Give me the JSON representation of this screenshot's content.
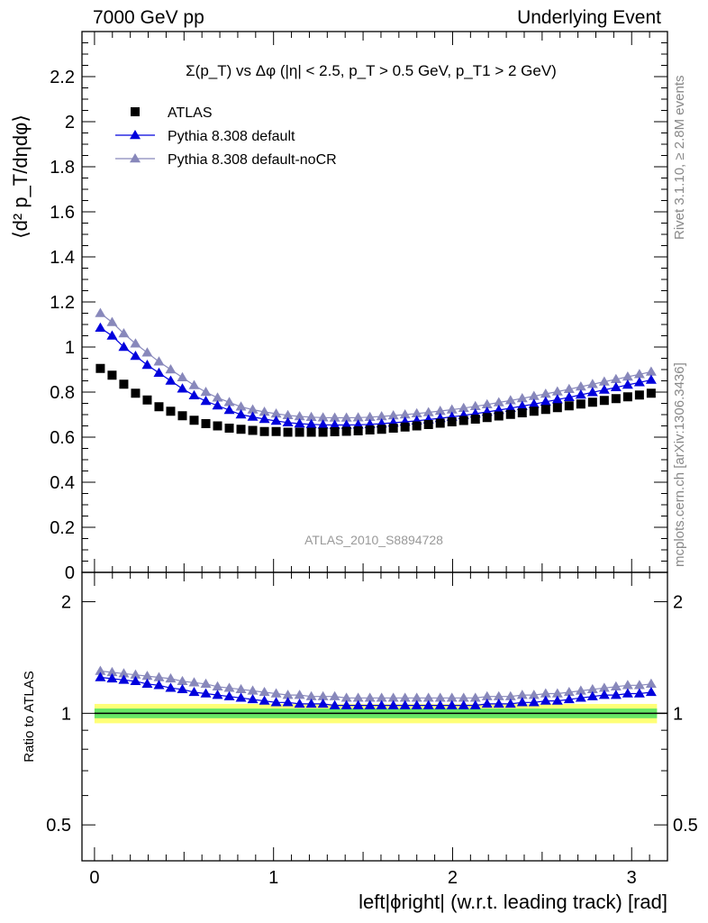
{
  "header": {
    "left": "7000 GeV pp",
    "right": "Underlying Event"
  },
  "side": {
    "rivet": "Rivet 3.1.10, ≥ 2.8M events",
    "mcplots": "mcplots.cern.ch [arXiv:1306.3436]"
  },
  "chart_data": [
    {
      "type": "scatter",
      "title": "Σ(p_T) vs Δφ (|η| < 2.5, p_T > 0.5 GeV, p_T1 > 2 GeV)",
      "ylabel": "⟨d² p_T/dηdφ⟩",
      "watermark": "ATLAS_2010_S8894728",
      "xlim": [
        -0.07,
        3.2
      ],
      "ylim": [
        0,
        2.4
      ],
      "yticks": [
        0,
        0.2,
        0.4,
        0.6,
        0.8,
        1,
        1.2,
        1.4,
        1.6,
        1.8,
        2,
        2.2
      ],
      "ytick_labels": [
        "0",
        "0.2",
        "0.4",
        "0.6",
        "0.8",
        "1",
        "1.2",
        "1.4",
        "1.6",
        "1.8",
        "2",
        "2.2"
      ],
      "legend_position": "top-left",
      "x": [
        0.0327,
        0.0982,
        0.1636,
        0.2291,
        0.2945,
        0.36,
        0.4254,
        0.4909,
        0.5563,
        0.6218,
        0.6872,
        0.7527,
        0.8181,
        0.8836,
        0.949,
        1.0145,
        1.0799,
        1.1454,
        1.2108,
        1.2763,
        1.3417,
        1.4072,
        1.4726,
        1.5381,
        1.6035,
        1.669,
        1.7344,
        1.7999,
        1.8653,
        1.9308,
        1.9962,
        2.0617,
        2.1271,
        2.1926,
        2.258,
        2.3235,
        2.3889,
        2.4544,
        2.5198,
        2.5853,
        2.6507,
        2.7162,
        2.7816,
        2.8471,
        2.9125,
        2.978,
        3.0434,
        3.1089
      ],
      "series": [
        {
          "name": "ATLAS",
          "color": "#000000",
          "marker": "square",
          "values": [
            0.905,
            0.875,
            0.835,
            0.795,
            0.765,
            0.735,
            0.715,
            0.695,
            0.675,
            0.66,
            0.65,
            0.64,
            0.635,
            0.63,
            0.625,
            0.625,
            0.622,
            0.622,
            0.622,
            0.622,
            0.624,
            0.626,
            0.628,
            0.632,
            0.635,
            0.64,
            0.645,
            0.65,
            0.656,
            0.662,
            0.668,
            0.674,
            0.68,
            0.687,
            0.694,
            0.701,
            0.708,
            0.715,
            0.723,
            0.731,
            0.739,
            0.747,
            0.755,
            0.763,
            0.771,
            0.779,
            0.787,
            0.795
          ]
        },
        {
          "name": "Pythia 8.308 default",
          "color": "#0000dd",
          "marker": "triangle",
          "values": [
            1.085,
            1.05,
            1.0,
            0.96,
            0.92,
            0.885,
            0.85,
            0.815,
            0.785,
            0.76,
            0.74,
            0.72,
            0.7,
            0.69,
            0.68,
            0.672,
            0.665,
            0.66,
            0.657,
            0.655,
            0.654,
            0.654,
            0.655,
            0.657,
            0.66,
            0.664,
            0.668,
            0.673,
            0.678,
            0.684,
            0.69,
            0.697,
            0.704,
            0.712,
            0.72,
            0.729,
            0.738,
            0.747,
            0.757,
            0.767,
            0.777,
            0.788,
            0.799,
            0.81,
            0.821,
            0.832,
            0.843,
            0.854
          ]
        },
        {
          "name": "Pythia 8.308 default-noCR",
          "color": "#8888bb",
          "marker": "triangle",
          "values": [
            1.15,
            1.11,
            1.06,
            1.015,
            0.975,
            0.935,
            0.9,
            0.865,
            0.83,
            0.8,
            0.775,
            0.755,
            0.735,
            0.722,
            0.712,
            0.704,
            0.697,
            0.692,
            0.689,
            0.687,
            0.686,
            0.686,
            0.687,
            0.689,
            0.692,
            0.696,
            0.7,
            0.705,
            0.71,
            0.716,
            0.722,
            0.729,
            0.737,
            0.745,
            0.754,
            0.763,
            0.772,
            0.782,
            0.792,
            0.802,
            0.813,
            0.824,
            0.835,
            0.846,
            0.857,
            0.868,
            0.879,
            0.89
          ]
        }
      ]
    },
    {
      "type": "scatter",
      "xlabel": "left|ϕright| (w.r.t. leading track) [rad]",
      "ylabel": "Ratio to ATLAS",
      "xlim": [
        -0.07,
        3.2
      ],
      "xticks": [
        0,
        1,
        2,
        3
      ],
      "xtick_labels": [
        "0",
        "1",
        "2",
        "3"
      ],
      "ylim": [
        0.4,
        2.4
      ],
      "log_y": true,
      "yticks": [
        0.5,
        1,
        2
      ],
      "ytick_labels": [
        "0.5",
        "1",
        "2"
      ],
      "band_inner": [
        0.97,
        1.03
      ],
      "band_outer": [
        0.94,
        1.06
      ],
      "band_colors": {
        "inner": "#66e666",
        "outer": "#ffff77"
      },
      "series": [
        {
          "name": "Pythia 8.308 default",
          "color": "#0000dd",
          "marker": "triangle",
          "values": [
            1.25,
            1.24,
            1.23,
            1.22,
            1.2,
            1.19,
            1.17,
            1.16,
            1.14,
            1.13,
            1.12,
            1.11,
            1.1,
            1.09,
            1.08,
            1.07,
            1.07,
            1.06,
            1.06,
            1.06,
            1.05,
            1.05,
            1.05,
            1.05,
            1.05,
            1.05,
            1.05,
            1.05,
            1.05,
            1.05,
            1.05,
            1.05,
            1.05,
            1.06,
            1.06,
            1.06,
            1.07,
            1.07,
            1.08,
            1.08,
            1.09,
            1.1,
            1.11,
            1.12,
            1.12,
            1.13,
            1.13,
            1.14
          ]
        },
        {
          "name": "Pythia 8.308 default-noCR",
          "color": "#8888bb",
          "marker": "triangle",
          "values": [
            1.3,
            1.29,
            1.28,
            1.27,
            1.26,
            1.25,
            1.24,
            1.22,
            1.21,
            1.2,
            1.18,
            1.17,
            1.16,
            1.15,
            1.14,
            1.13,
            1.12,
            1.12,
            1.11,
            1.11,
            1.11,
            1.1,
            1.1,
            1.1,
            1.1,
            1.1,
            1.1,
            1.1,
            1.1,
            1.1,
            1.1,
            1.1,
            1.1,
            1.11,
            1.11,
            1.11,
            1.12,
            1.12,
            1.13,
            1.13,
            1.14,
            1.15,
            1.16,
            1.17,
            1.18,
            1.19,
            1.19,
            1.2
          ]
        }
      ]
    }
  ]
}
